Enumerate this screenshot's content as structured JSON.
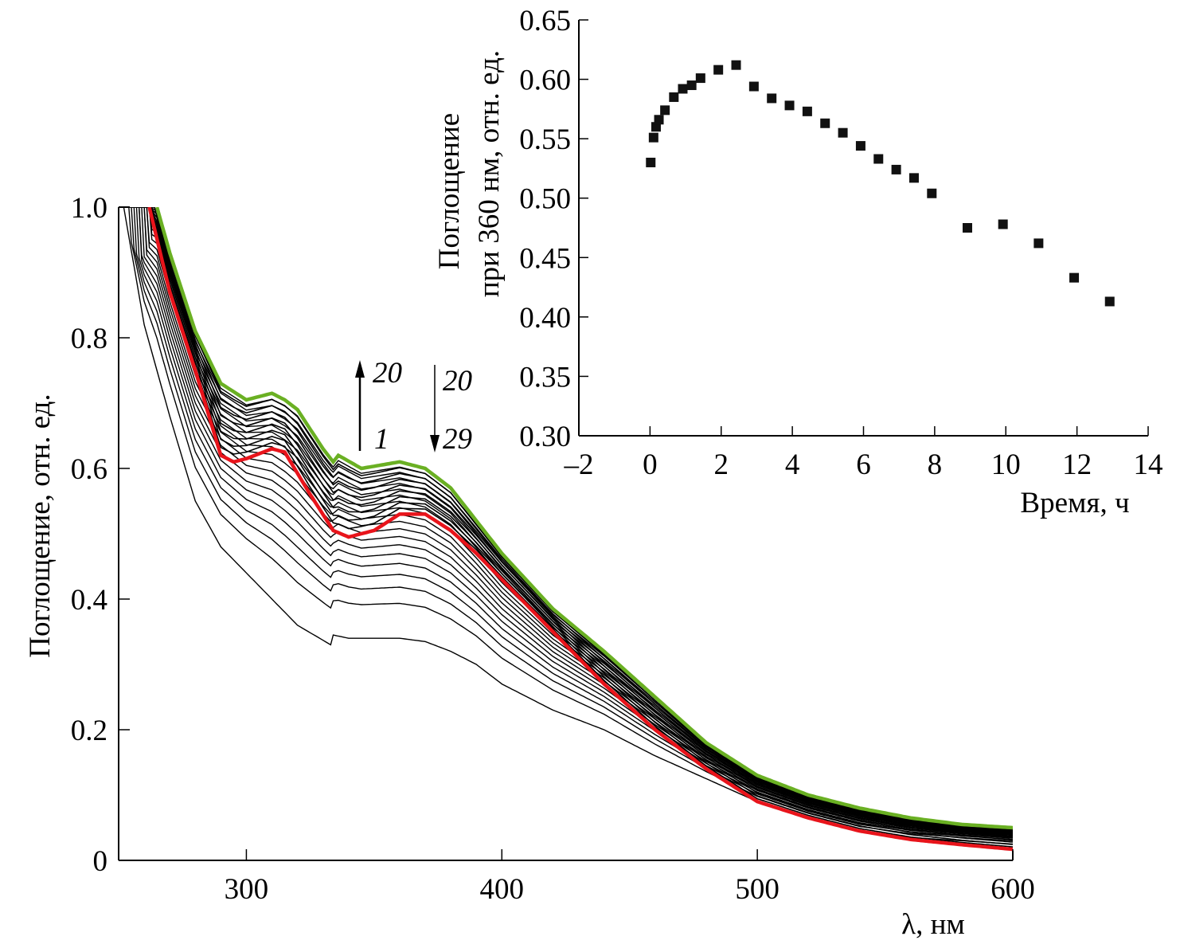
{
  "chart_data": [
    {
      "id": "main",
      "type": "line",
      "title": "",
      "xlabel": "λ, нм",
      "ylabel": "Поглощение, отн. ед.",
      "xlim": [
        250,
        600
      ],
      "ylim": [
        0,
        1.0
      ],
      "xticks": [
        300,
        400,
        500,
        600
      ],
      "xtick_labels": [
        "300",
        "400",
        "500",
        "600"
      ],
      "yticks": [
        0,
        0.2,
        0.4,
        0.6,
        0.8,
        1.0
      ],
      "ytick_labels": [
        "0",
        "0.2",
        "0.4",
        "0.6",
        "0.8",
        "1.0"
      ],
      "grid": false,
      "curve_count": 29,
      "annotations": [
        {
          "text": "20",
          "direction": "up",
          "from_label": "1",
          "meaning": "curves 1→20 increase"
        },
        {
          "text": "20",
          "direction": "down",
          "to_label": "29",
          "meaning": "curves 20→29 decrease"
        }
      ],
      "annotation_labels": {
        "up_top": "20",
        "up_bottom": "1",
        "down_top": "20",
        "down_bottom": "29"
      },
      "series": [
        {
          "name": "1",
          "color": "#000000",
          "role": "first spectrum",
          "x": [
            252,
            260,
            270,
            280,
            290,
            300,
            310,
            320,
            333,
            334,
            340,
            350,
            360,
            370,
            380,
            390,
            400,
            420,
            440,
            460,
            480,
            500,
            520,
            540,
            560,
            580,
            600
          ],
          "y": [
            1.0,
            0.82,
            0.68,
            0.55,
            0.48,
            0.44,
            0.4,
            0.36,
            0.33,
            0.345,
            0.34,
            0.34,
            0.34,
            0.335,
            0.32,
            0.3,
            0.27,
            0.23,
            0.2,
            0.16,
            0.125,
            0.09,
            0.065,
            0.045,
            0.035,
            0.03,
            0.025
          ]
        },
        {
          "name": "20",
          "color": "#6ab023",
          "role": "maximum spectrum",
          "x": [
            265,
            270,
            280,
            290,
            300,
            305,
            310,
            315,
            320,
            330,
            334,
            336,
            345,
            360,
            370,
            380,
            390,
            400,
            420,
            440,
            460,
            480,
            500,
            520,
            540,
            560,
            580,
            600
          ],
          "y": [
            1.0,
            0.93,
            0.81,
            0.73,
            0.705,
            0.71,
            0.715,
            0.705,
            0.69,
            0.63,
            0.61,
            0.62,
            0.6,
            0.61,
            0.6,
            0.57,
            0.52,
            0.47,
            0.385,
            0.32,
            0.25,
            0.18,
            0.13,
            0.1,
            0.08,
            0.065,
            0.055,
            0.05
          ]
        },
        {
          "name": "29",
          "color": "#e8141b",
          "role": "last spectrum",
          "x": [
            262,
            270,
            280,
            290,
            295,
            300,
            310,
            315,
            325,
            334,
            340,
            350,
            360,
            370,
            380,
            390,
            400,
            420,
            440,
            460,
            480,
            500,
            520,
            540,
            560,
            580,
            600
          ],
          "y": [
            1.0,
            0.87,
            0.75,
            0.62,
            0.61,
            0.615,
            0.63,
            0.625,
            0.56,
            0.505,
            0.495,
            0.505,
            0.53,
            0.53,
            0.505,
            0.47,
            0.43,
            0.35,
            0.27,
            0.2,
            0.14,
            0.09,
            0.065,
            0.045,
            0.032,
            0.024,
            0.017
          ]
        }
      ]
    },
    {
      "id": "inset",
      "type": "scatter",
      "title": "",
      "xlabel": "Время, ч",
      "ylabel_line1": "Поглощение",
      "ylabel_line2": "при 360 нм, отн. ед.",
      "xlim": [
        -2,
        14
      ],
      "ylim": [
        0.3,
        0.65
      ],
      "xticks": [
        -2,
        0,
        2,
        4,
        6,
        8,
        10,
        12,
        14
      ],
      "xtick_labels": [
        "–2",
        "0",
        "2",
        "4",
        "6",
        "8",
        "10",
        "12",
        "14"
      ],
      "yticks": [
        0.3,
        0.35,
        0.4,
        0.45,
        0.5,
        0.55,
        0.6,
        0.65
      ],
      "ytick_labels": [
        "0.30",
        "0.35",
        "0.40",
        "0.45",
        "0.50",
        "0.55",
        "0.60",
        "0.65"
      ],
      "grid": false,
      "marker": "square",
      "marker_color": "#111111",
      "x": [
        0.02,
        0.1,
        0.17,
        0.25,
        0.42,
        0.67,
        0.92,
        1.17,
        1.42,
        1.92,
        2.42,
        2.92,
        3.42,
        3.92,
        4.42,
        4.92,
        5.42,
        5.92,
        6.42,
        6.92,
        7.42,
        7.92,
        8.92,
        9.92,
        10.92,
        11.92,
        12.92
      ],
      "y": [
        0.53,
        0.551,
        0.56,
        0.566,
        0.574,
        0.585,
        0.592,
        0.595,
        0.601,
        0.608,
        0.612,
        0.594,
        0.584,
        0.578,
        0.573,
        0.563,
        0.555,
        0.544,
        0.533,
        0.524,
        0.517,
        0.504,
        0.475,
        0.478,
        0.462,
        0.433,
        0.413
      ]
    }
  ]
}
